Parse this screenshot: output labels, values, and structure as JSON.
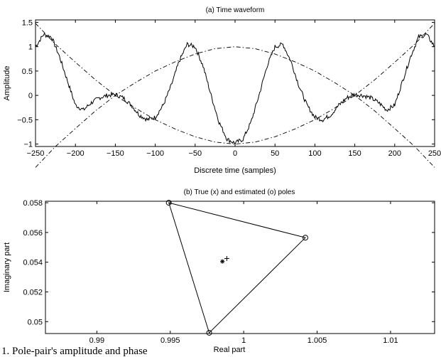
{
  "chart_data": [
    {
      "type": "line",
      "title": "(a) Time waveform",
      "xlabel": "Discrete time (samples)",
      "ylabel": "Amplitude",
      "xlim": [
        -250,
        250
      ],
      "ylim": [
        -1.05,
        1.55
      ],
      "xticks": [
        -250,
        -200,
        -150,
        -100,
        -50,
        0,
        50,
        100,
        150,
        200,
        250
      ],
      "yticks": [
        -1,
        -0.5,
        0,
        0.5,
        1,
        1.5
      ],
      "xtick_labels": [
        "−250",
        "−200",
        "−150",
        "−100",
        "−50",
        "0",
        "50",
        "100",
        "150",
        "200",
        "250"
      ],
      "ytick_labels": [
        "−1",
        "−0.5",
        "0",
        "0.5",
        "1",
        "1.5"
      ],
      "grid": false,
      "series": [
        {
          "style": "solid",
          "noisy": true,
          "x": [
            -250,
            -240,
            -230,
            -220,
            -210,
            -200,
            -190,
            -180,
            -170,
            -160,
            -150,
            -140,
            -130,
            -120,
            -110,
            -100,
            -90,
            -80,
            -70,
            -60,
            -50,
            -40,
            -30,
            -20,
            -10,
            0,
            10,
            20,
            30,
            40,
            50,
            60,
            70,
            80,
            90,
            100,
            110,
            120,
            130,
            140,
            150,
            160,
            170,
            180,
            190,
            200,
            210,
            220,
            230,
            240,
            250
          ],
          "values": [
            1.0,
            1.25,
            1.2,
            0.8,
            0.3,
            -0.2,
            -0.3,
            -0.15,
            -0.05,
            0.0,
            0.02,
            -0.05,
            -0.2,
            -0.4,
            -0.5,
            -0.45,
            -0.2,
            0.2,
            0.7,
            1.05,
            1.0,
            0.6,
            0.0,
            -0.55,
            -0.9,
            -0.98,
            -0.9,
            -0.55,
            0.0,
            0.6,
            1.0,
            1.05,
            0.7,
            0.2,
            -0.2,
            -0.45,
            -0.5,
            -0.4,
            -0.2,
            -0.05,
            0.02,
            0.0,
            -0.05,
            -0.15,
            -0.3,
            -0.2,
            0.3,
            0.8,
            1.2,
            1.25,
            1.0
          ]
        },
        {
          "style": "dash-dot",
          "x": [
            -250,
            -225,
            -200,
            -175,
            -150,
            -125,
            -100,
            -75,
            -50,
            -25,
            0,
            25,
            50,
            75,
            100,
            125,
            150,
            175,
            200,
            225,
            250
          ],
          "values": [
            1.48,
            1.05,
            0.68,
            0.32,
            0.0,
            -0.26,
            -0.5,
            -0.69,
            -0.85,
            -0.96,
            -1.0,
            -0.96,
            -0.85,
            -0.69,
            -0.5,
            -0.26,
            0.0,
            0.32,
            0.68,
            1.05,
            1.48
          ]
        },
        {
          "style": "dash-dot",
          "x": [
            -250,
            -225,
            -200,
            -175,
            -150,
            -125,
            -100,
            -75,
            -50,
            -25,
            0,
            25,
            50,
            75,
            100,
            125,
            150,
            175,
            200,
            225,
            250
          ],
          "values": [
            -1.48,
            -1.05,
            -0.68,
            -0.32,
            0.0,
            0.26,
            0.5,
            0.69,
            0.85,
            0.96,
            1.0,
            0.96,
            0.85,
            0.69,
            0.5,
            0.26,
            0.0,
            -0.32,
            -0.68,
            -1.05,
            -1.48
          ]
        }
      ]
    },
    {
      "type": "scatter",
      "title": "(b) True (x) and estimated (o) poles",
      "xlabel": "Real part",
      "ylabel": "Imaginary part",
      "xlim": [
        0.9865,
        1.013
      ],
      "ylim": [
        0.0492,
        0.0581
      ],
      "xticks": [
        0.99,
        0.995,
        1.0,
        1.005,
        1.01
      ],
      "yticks": [
        0.05,
        0.052,
        0.054,
        0.056,
        0.058
      ],
      "xtick_labels": [
        "0.99",
        "0.995",
        "1",
        "1.005",
        "1.01"
      ],
      "ytick_labels": [
        "0.05",
        "0.052",
        "0.054",
        "0.056",
        "0.058"
      ],
      "grid": false,
      "estimated_poles": [
        {
          "x": 0.9949,
          "y": 0.058
        },
        {
          "x": 1.0042,
          "y": 0.05565
        },
        {
          "x": 0.99765,
          "y": 0.04925
        }
      ],
      "centroid_star": {
        "x": 0.99855,
        "y": 0.05405
      },
      "true_pole_plus": {
        "x": 0.99885,
        "y": 0.05425
      }
    }
  ],
  "caption": "1.    Pole-pair's amplitude and phase"
}
